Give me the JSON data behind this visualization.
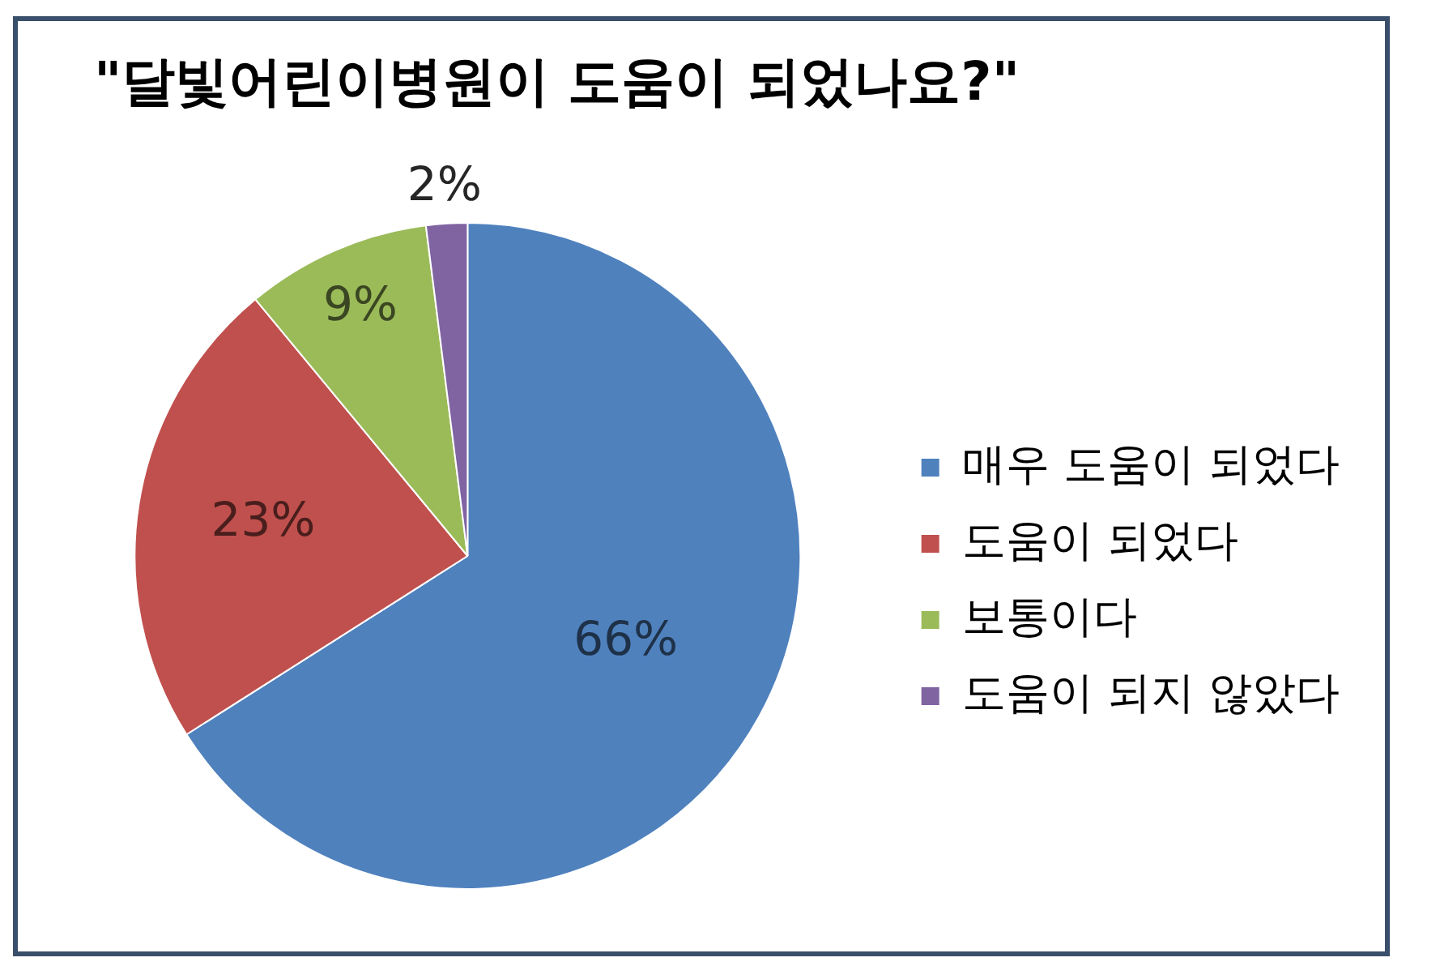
{
  "chart_data": {
    "type": "pie",
    "title": "\"달빛어린이병원이 도움이 되었나요?\"",
    "categories": [
      "매우 도움이 되었다",
      "도움이 되었다",
      "보통이다",
      "도움이 되지 않았다"
    ],
    "values": [
      66,
      23,
      9,
      2
    ],
    "colors": [
      "#4f81bd",
      "#c0504d",
      "#9bbb59",
      "#8064a2"
    ],
    "value_labels": [
      "66%",
      "23%",
      "9%",
      "2%"
    ],
    "legend": "right"
  }
}
